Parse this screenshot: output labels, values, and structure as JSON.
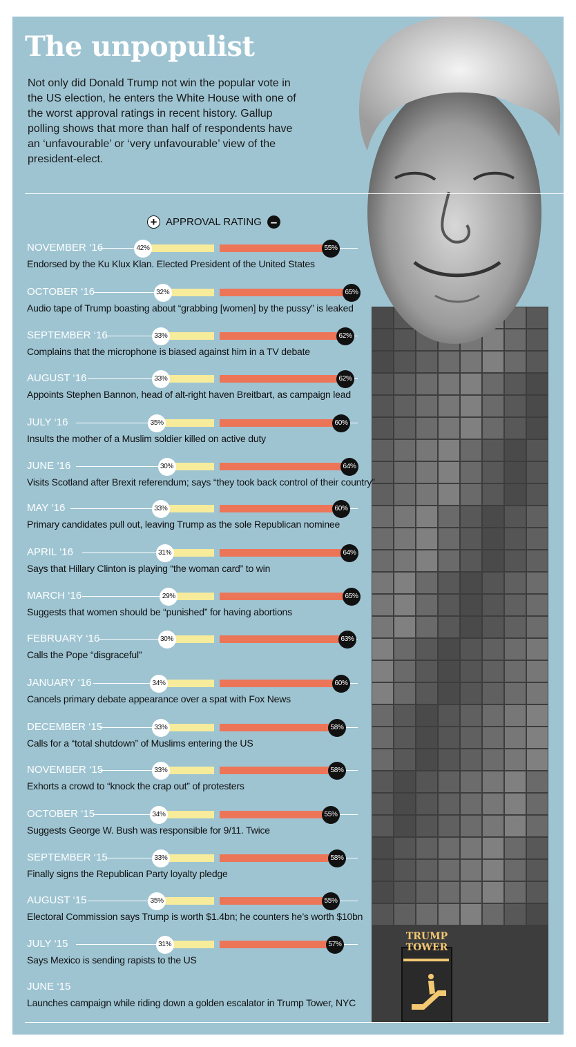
{
  "title": "The unpopulist",
  "intro": "Not only did Donald Trump not win the popular vote in the US election, he enters the White House with one of the worst approval ratings in recent history. Gallup polling shows that more than half of respondents have an ‘unfavourable’ or ‘very unfavourable’ view of the president-elect.",
  "legend": {
    "plus": "+",
    "label": "APPROVAL RATING",
    "minus": "–"
  },
  "tower_sign": [
    "TRUMP",
    "TOWER"
  ],
  "chart_data": {
    "type": "bar",
    "series": [
      {
        "name": "+",
        "values": [
          42,
          32,
          33,
          33,
          35,
          30,
          33,
          31,
          29,
          30,
          34,
          33,
          33,
          34,
          33,
          35,
          31
        ]
      },
      {
        "name": "–",
        "values": [
          55,
          65,
          62,
          62,
          60,
          64,
          60,
          64,
          65,
          63,
          60,
          58,
          58,
          55,
          58,
          55,
          57
        ]
      }
    ],
    "rows": [
      {
        "month": "NOVEMBER ‘16",
        "approve": 42,
        "disapprove": 55,
        "approve_label": "42%",
        "disapprove_label": "55%",
        "event": "Endorsed by the Ku Klux Klan. Elected President of the United States"
      },
      {
        "month": "OCTOBER ‘16",
        "approve": 32,
        "disapprove": 65,
        "approve_label": "32%",
        "disapprove_label": "65%",
        "event": "Audio tape of Trump boasting about “grabbing [women] by the pussy” is leaked"
      },
      {
        "month": "SEPTEMBER ‘16",
        "approve": 33,
        "disapprove": 62,
        "approve_label": "33%",
        "disapprove_label": "62%",
        "event": "Complains that the microphone is biased against him in a TV debate"
      },
      {
        "month": "AUGUST ‘16",
        "approve": 33,
        "disapprove": 62,
        "approve_label": "33%",
        "disapprove_label": "62%",
        "event": "Appoints Stephen Bannon, head of alt-right haven Breitbart, as campaign lead"
      },
      {
        "month": "JULY ‘16",
        "approve": 35,
        "disapprove": 60,
        "approve_label": "35%",
        "disapprove_label": "60%",
        "event": "Insults the mother of a Muslim soldier killed on active duty"
      },
      {
        "month": "JUNE ‘16",
        "approve": 30,
        "disapprove": 64,
        "approve_label": "30%",
        "disapprove_label": "64%",
        "event": "Visits Scotland after Brexit referendum; says “they took back control of their country”"
      },
      {
        "month": "MAY ‘16",
        "approve": 33,
        "disapprove": 60,
        "approve_label": "33%",
        "disapprove_label": "60%",
        "event": "Primary candidates pull out, leaving Trump as the sole Republican nominee"
      },
      {
        "month": "APRIL ‘16",
        "approve": 31,
        "disapprove": 64,
        "approve_label": "31%",
        "disapprove_label": "64%",
        "event": "Says that Hillary Clinton is playing “the woman card” to win"
      },
      {
        "month": "MARCH ‘16",
        "approve": 29,
        "disapprove": 65,
        "approve_label": "29%",
        "disapprove_label": "65%",
        "event": "Suggests that women should be “punished” for having abortions"
      },
      {
        "month": "FEBRUARY ‘16",
        "approve": 30,
        "disapprove": 63,
        "approve_label": "30%",
        "disapprove_label": "63%",
        "event": "Calls the Pope “disgraceful”"
      },
      {
        "month": "JANUARY ‘16",
        "approve": 34,
        "disapprove": 60,
        "approve_label": "34%",
        "disapprove_label": "60%",
        "event": "Cancels primary debate appearance over a spat with Fox News"
      },
      {
        "month": "DECEMBER ‘15",
        "approve": 33,
        "disapprove": 58,
        "approve_label": "33%",
        "disapprove_label": "58%",
        "event": "Calls for a “total shutdown” of Muslims entering the US"
      },
      {
        "month": "NOVEMBER ‘15",
        "approve": 33,
        "disapprove": 58,
        "approve_label": "33%",
        "disapprove_label": "58%",
        "event": "Exhorts a crowd to “knock the crap out” of protesters"
      },
      {
        "month": "OCTOBER ‘15",
        "approve": 34,
        "disapprove": 55,
        "approve_label": "34%",
        "disapprove_label": "55%",
        "event": "Suggests George W. Bush was responsible for 9/11. Twice"
      },
      {
        "month": "SEPTEMBER ‘15",
        "approve": 33,
        "disapprove": 58,
        "approve_label": "33%",
        "disapprove_label": "58%",
        "event": "Finally signs the Republican Party loyalty pledge"
      },
      {
        "month": "AUGUST ‘15",
        "approve": 35,
        "disapprove": 55,
        "approve_label": "35%",
        "disapprove_label": "55%",
        "event": "Electoral Commission says Trump is worth $1.4bn; he counters he’s worth $10bn"
      },
      {
        "month": "JULY ‘15",
        "approve": 31,
        "disapprove": 57,
        "approve_label": "31%",
        "disapprove_label": "57%",
        "event": "Says Mexico is sending rapists to the US"
      },
      {
        "month": "JUNE ‘15",
        "event": "Launches campaign while riding down a golden escalator in Trump Tower, NYC"
      }
    ],
    "colors": {
      "background": "#9ec4d2",
      "approve": "#f7ec9b",
      "disapprove": "#ec7558",
      "approve_marker": "#ffffff",
      "disapprove_marker": "#111111"
    }
  }
}
